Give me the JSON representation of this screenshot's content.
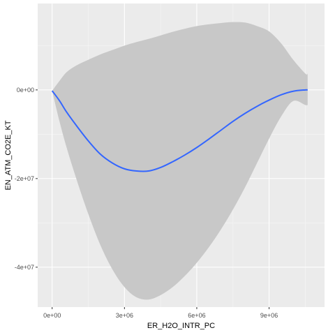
{
  "chart_data": {
    "type": "line",
    "title": "",
    "xlabel": "ER_H2O_INTR_PC",
    "ylabel": "EN_ATM_CO2E_KT",
    "xlim": [
      -600000,
      11300000
    ],
    "ylim": [
      -49000000,
      19500000
    ],
    "x_ticks": [
      {
        "value": 0,
        "label": "0e+00"
      },
      {
        "value": 3000000,
        "label": "3e+06"
      },
      {
        "value": 6000000,
        "label": "6e+06"
      },
      {
        "value": 9000000,
        "label": "9e+06"
      }
    ],
    "y_ticks": [
      {
        "value": 0,
        "label": "0e+00"
      },
      {
        "value": -20000000,
        "label": "-2e+07"
      },
      {
        "value": -40000000,
        "label": "-4e+07"
      }
    ],
    "grid": true,
    "legend": "none",
    "series": [
      {
        "line_color": "#3366ff",
        "band_color": "#c8c8c8",
        "x": [
          0,
          300000,
          600000,
          1000000,
          1500000,
          2000000,
          2500000,
          3000000,
          3500000,
          4000000,
          4500000,
          5000000,
          5500000,
          6000000,
          6500000,
          7000000,
          7500000,
          8000000,
          8500000,
          9000000,
          9500000,
          10000000,
          10500000,
          10600000
        ],
        "y": [
          -200000,
          -2400000,
          -5000000,
          -8000000,
          -11500000,
          -14500000,
          -16500000,
          -17800000,
          -18300000,
          -18300000,
          -17500000,
          -16200000,
          -14700000,
          -13000000,
          -11100000,
          -9100000,
          -7100000,
          -5300000,
          -3700000,
          -2300000,
          -1100000,
          -300000,
          0,
          0
        ],
        "y_low": [
          -200000,
          -7000000,
          -13000000,
          -20000000,
          -28000000,
          -35000000,
          -40500000,
          -44500000,
          -46800000,
          -47300000,
          -46300000,
          -44500000,
          -42000000,
          -39000000,
          -35500000,
          -31500000,
          -27000000,
          -22000000,
          -16500000,
          -11000000,
          -6000000,
          -2500000,
          -3400000,
          -3400000
        ],
        "y_high": [
          -200000,
          2000000,
          4000000,
          5500000,
          6800000,
          8000000,
          9000000,
          10000000,
          10800000,
          11500000,
          12300000,
          13100000,
          13800000,
          14400000,
          14800000,
          15100000,
          15300000,
          15200000,
          14400000,
          13200000,
          10500000,
          6800000,
          3700000,
          3700000
        ]
      }
    ]
  }
}
